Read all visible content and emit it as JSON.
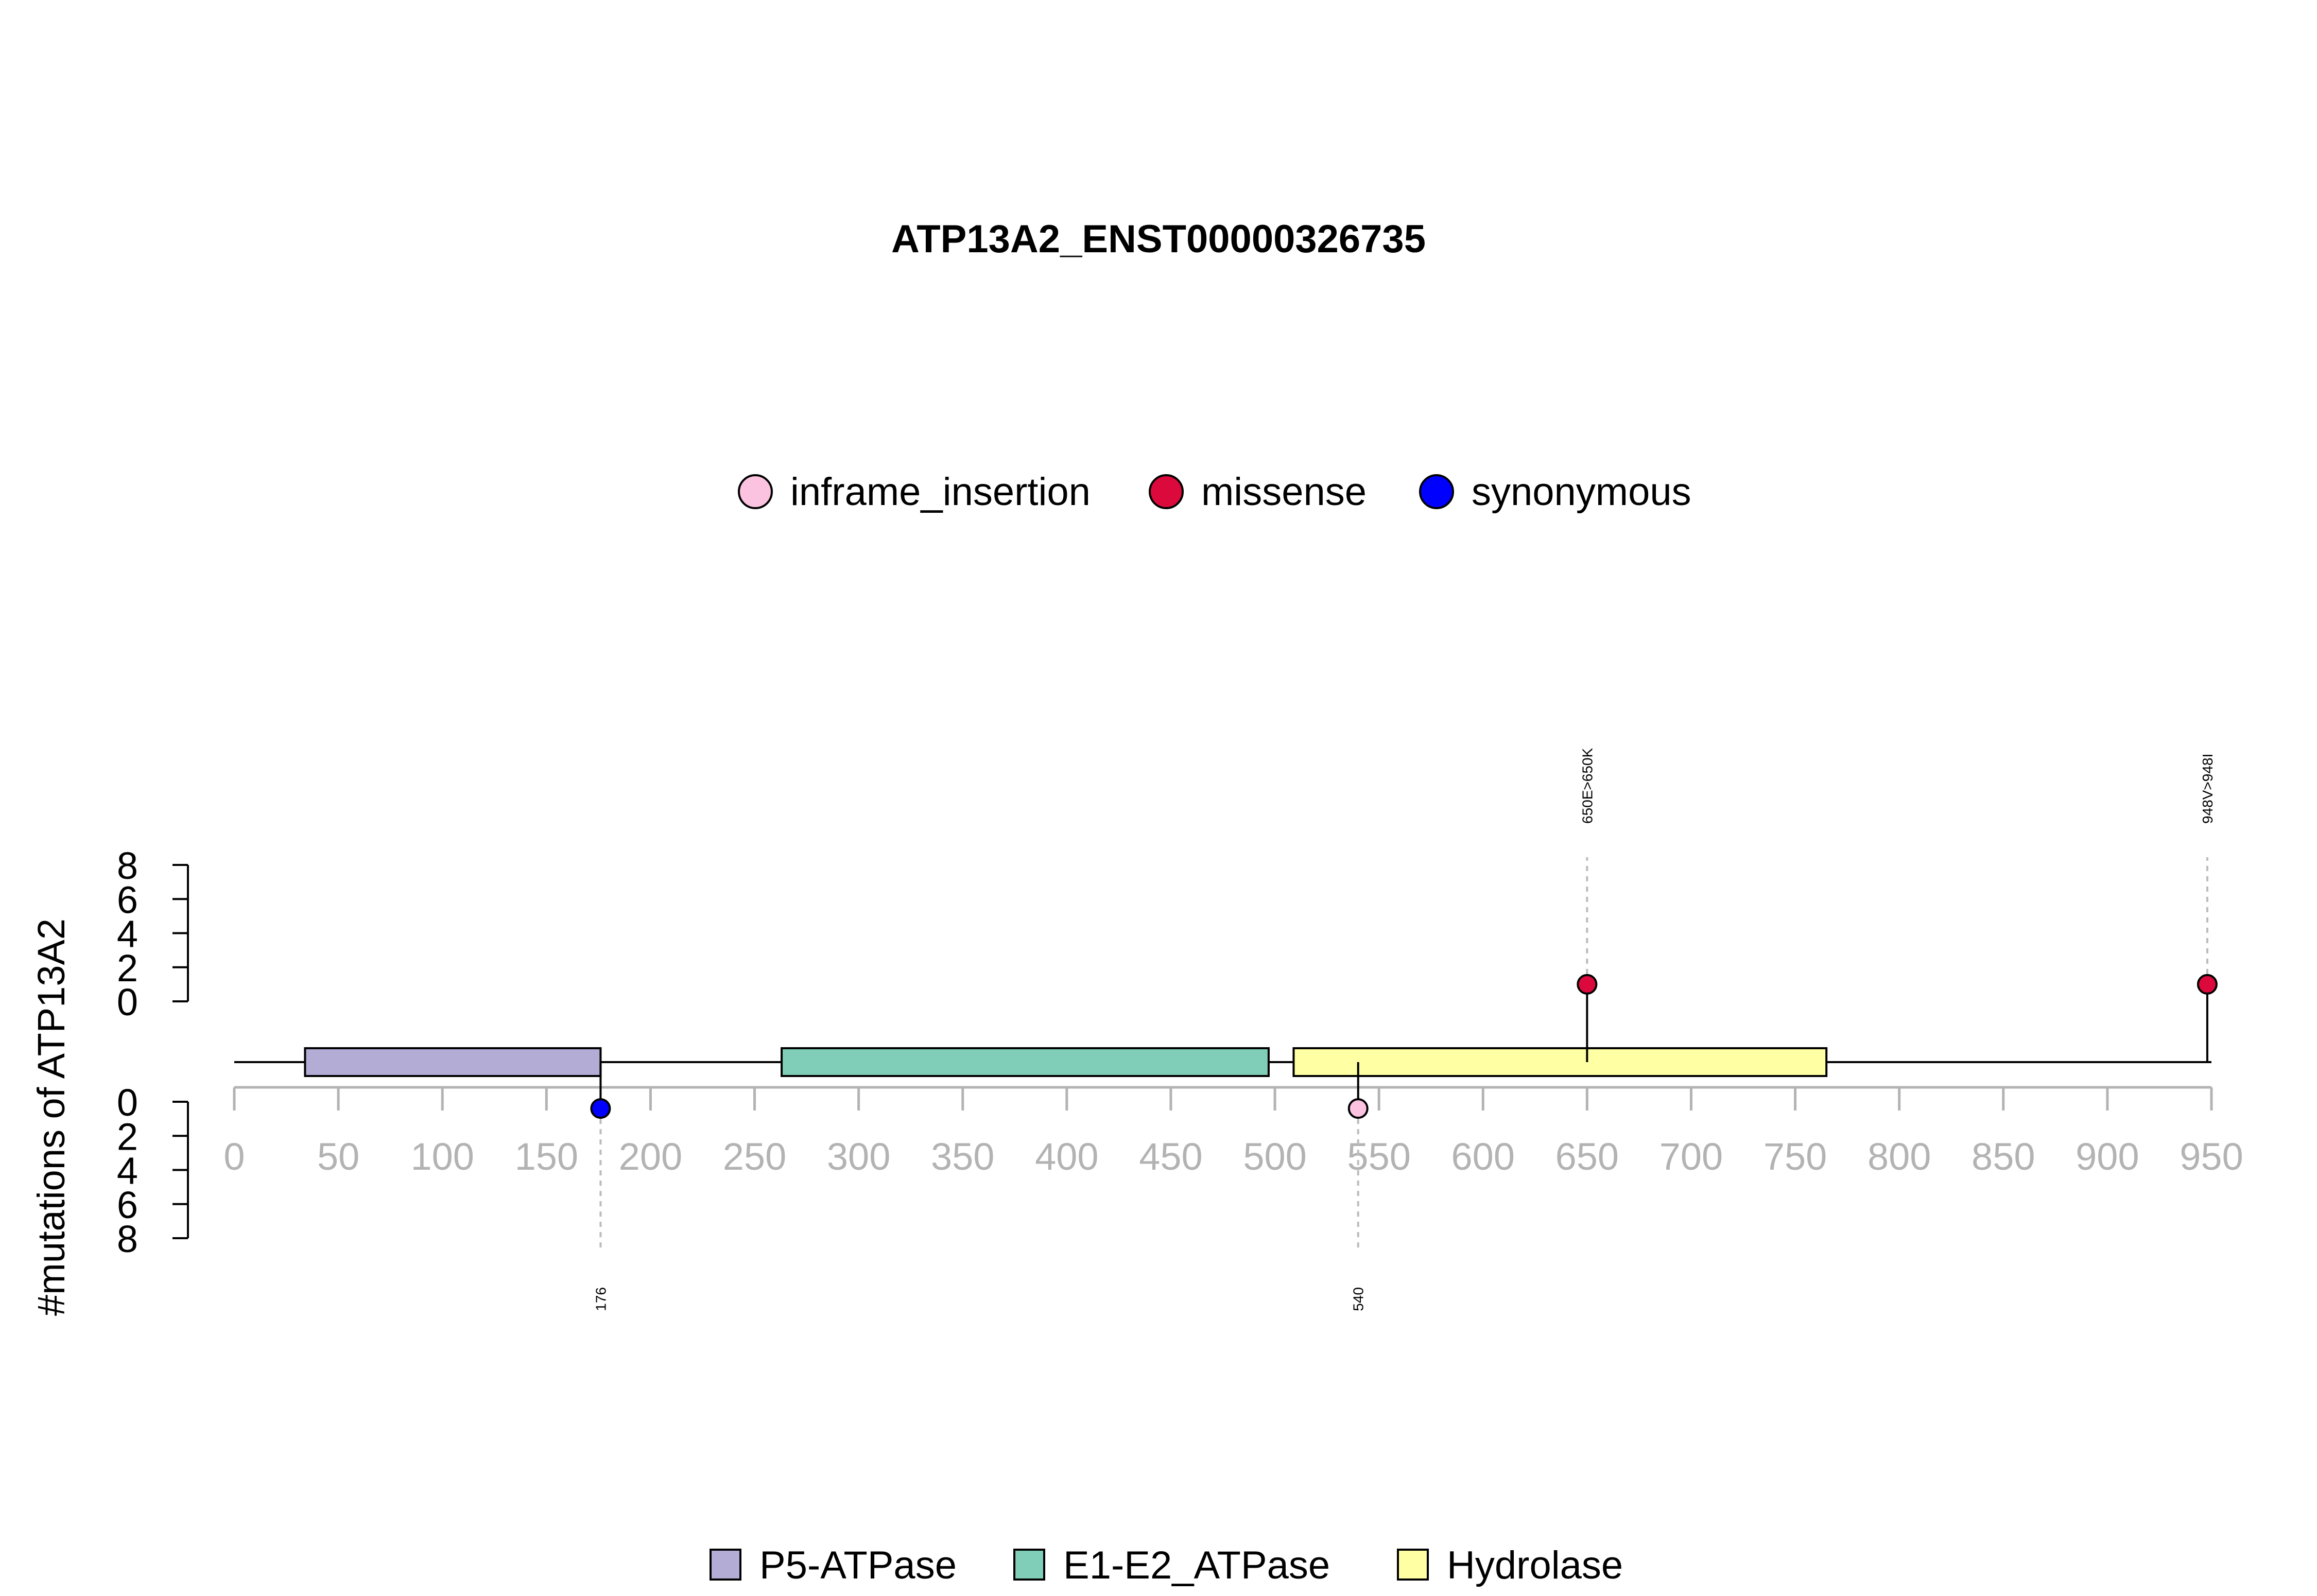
{
  "chart_data": {
    "type": "lollipop",
    "title": "ATP13A2_ENST00000326735",
    "ylabel": "#mutations of ATP13A2",
    "xlim": [
      0,
      950
    ],
    "x_ticks": [
      0,
      50,
      100,
      150,
      200,
      250,
      300,
      350,
      400,
      450,
      500,
      550,
      600,
      650,
      700,
      750,
      800,
      850,
      900,
      950
    ],
    "y_ticks_top": [
      0,
      2,
      4,
      6,
      8
    ],
    "y_ticks_bottom": [
      0,
      2,
      4,
      6,
      8
    ],
    "ylim": [
      0,
      8
    ],
    "mutation_legend": [
      {
        "label": "inframe_insertion",
        "color": "#FBC3DF"
      },
      {
        "label": "missense",
        "color": "#DC0A3C"
      },
      {
        "label": "synonymous",
        "color": "#0000FF"
      }
    ],
    "mutations": [
      {
        "position": 176,
        "count": 1,
        "type": "synonymous",
        "side": "bottom",
        "label": "176",
        "color": "#0000FF"
      },
      {
        "position": 540,
        "count": 1,
        "type": "inframe_insertion",
        "side": "bottom",
        "label": "540",
        "color": "#FBC3DF"
      },
      {
        "position": 650,
        "count": 1,
        "type": "missense",
        "side": "top",
        "label": "650E>650K",
        "color": "#DC0A3C"
      },
      {
        "position": 948,
        "count": 1,
        "type": "missense",
        "side": "top",
        "label": "948V>948I",
        "color": "#DC0A3C"
      }
    ],
    "domain_legend": [
      {
        "label": "P5-ATPase",
        "color": "#B3ADD6"
      },
      {
        "label": "E1-E2_ATPase",
        "color": "#80CDB8"
      },
      {
        "label": "Hydrolase",
        "color": "#FFFFA3"
      }
    ],
    "domains": [
      {
        "name": "P5-ATPase",
        "start": 34,
        "end": 176,
        "color": "#B3ADD6"
      },
      {
        "name": "E1-E2_ATPase",
        "start": 263,
        "end": 497,
        "color": "#80CDB8"
      },
      {
        "name": "Hydrolase",
        "start": 509,
        "end": 765,
        "color": "#FFFFA3"
      }
    ],
    "axis_color": "#B3B3B3"
  }
}
